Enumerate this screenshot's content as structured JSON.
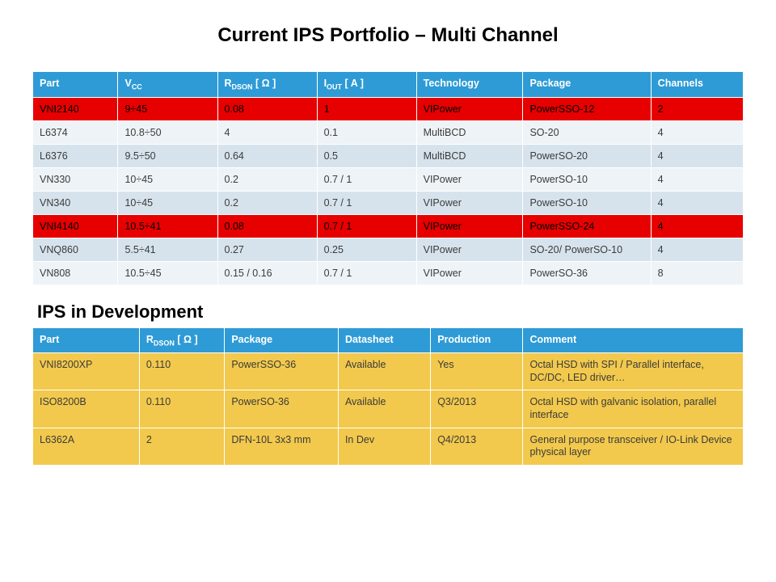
{
  "title": "Current IPS Portfolio – Multi Channel",
  "ohm_char": "Ω",
  "table1": {
    "header_color": "#2e9bd6",
    "header_text_color": "#ffffff",
    "col_widths": [
      "12%",
      "14%",
      "14%",
      "14%",
      "15%",
      "18%",
      "13%"
    ],
    "columns": [
      {
        "label": "Part"
      },
      {
        "label": "V",
        "sub": "CC"
      },
      {
        "label": "R",
        "sub": "DSON",
        "suffix_brackets_ohm": true
      },
      {
        "label": "I",
        "sub": "OUT",
        "suffix_brackets": " [ A ]"
      },
      {
        "label": "Technology"
      },
      {
        "label": "Package"
      },
      {
        "label": "Channels"
      }
    ],
    "rows": [
      {
        "highlight": true,
        "cells": [
          "VNI2140",
          "9÷45",
          "0.08",
          "1",
          "VIPower",
          "PowerSSO-12",
          "2"
        ]
      },
      {
        "highlight": false,
        "cells": [
          "L6374",
          "10.8÷50",
          "4",
          "0.1",
          "MultiBCD",
          "SO-20",
          "4"
        ]
      },
      {
        "highlight": false,
        "cells": [
          "L6376",
          "9.5÷50",
          "0.64",
          "0.5",
          "MultiBCD",
          "PowerSO-20",
          "4"
        ]
      },
      {
        "highlight": false,
        "cells": [
          "VN330",
          "10÷45",
          "0.2",
          "0.7 / 1",
          "VIPower",
          "PowerSO-10",
          "4"
        ]
      },
      {
        "highlight": false,
        "cells": [
          "VN340",
          "10÷45",
          "0.2",
          "0.7 / 1",
          "VIPower",
          "PowerSO-10",
          "4"
        ]
      },
      {
        "highlight": true,
        "cells": [
          "VNI4140",
          "10.5÷41",
          "0.08",
          "0.7 / 1",
          "VIPower",
          "PowerSSO-24",
          "4"
        ]
      },
      {
        "highlight": false,
        "cells": [
          "VNQ860",
          "5.5÷41",
          "0.27",
          "0.25",
          "VIPower",
          "SO-20/ PowerSO-10",
          "4"
        ]
      },
      {
        "highlight": false,
        "cells": [
          "VN808",
          "10.5÷45",
          "0.15 / 0.16",
          "0.7 / 1",
          "VIPower",
          "PowerSO-36",
          "8"
        ]
      }
    ],
    "alt_row_colors": [
      "#d7e3ec",
      "#eef3f7"
    ],
    "highlight_color": "#e60000",
    "highlight_text_color": "#000000",
    "text_color": "#3b3b3b"
  },
  "subtitle": "IPS in Development",
  "table2": {
    "header_color": "#2e9bd6",
    "header_text_color": "#ffffff",
    "row_color": "#f2c94c",
    "text_color": "#3b3b3b",
    "col_widths": [
      "15%",
      "12%",
      "16%",
      "13%",
      "13%",
      "31%"
    ],
    "columns": [
      {
        "label": "Part"
      },
      {
        "label": "R",
        "sub": "DSON",
        "suffix_brackets_ohm": true
      },
      {
        "label": "Package"
      },
      {
        "label": "Datasheet"
      },
      {
        "label": "Production"
      },
      {
        "label": "Comment"
      }
    ],
    "rows": [
      {
        "cells": [
          "VNI8200XP",
          "0.110",
          "PowerSSO-36",
          "Available",
          "Yes",
          "Octal HSD with SPI / Parallel interface, DC/DC, LED driver…"
        ]
      },
      {
        "cells": [
          "ISO8200B",
          "0.110",
          "PowerSO-36",
          "Available",
          "Q3/2013",
          "Octal HSD with galvanic isolation, parallel interface"
        ]
      },
      {
        "cells": [
          "L6362A",
          "2",
          "DFN-10L 3x3 mm",
          "In Dev",
          "Q4/2013",
          "General purpose transceiver / IO-Link Device physical layer"
        ]
      }
    ]
  }
}
